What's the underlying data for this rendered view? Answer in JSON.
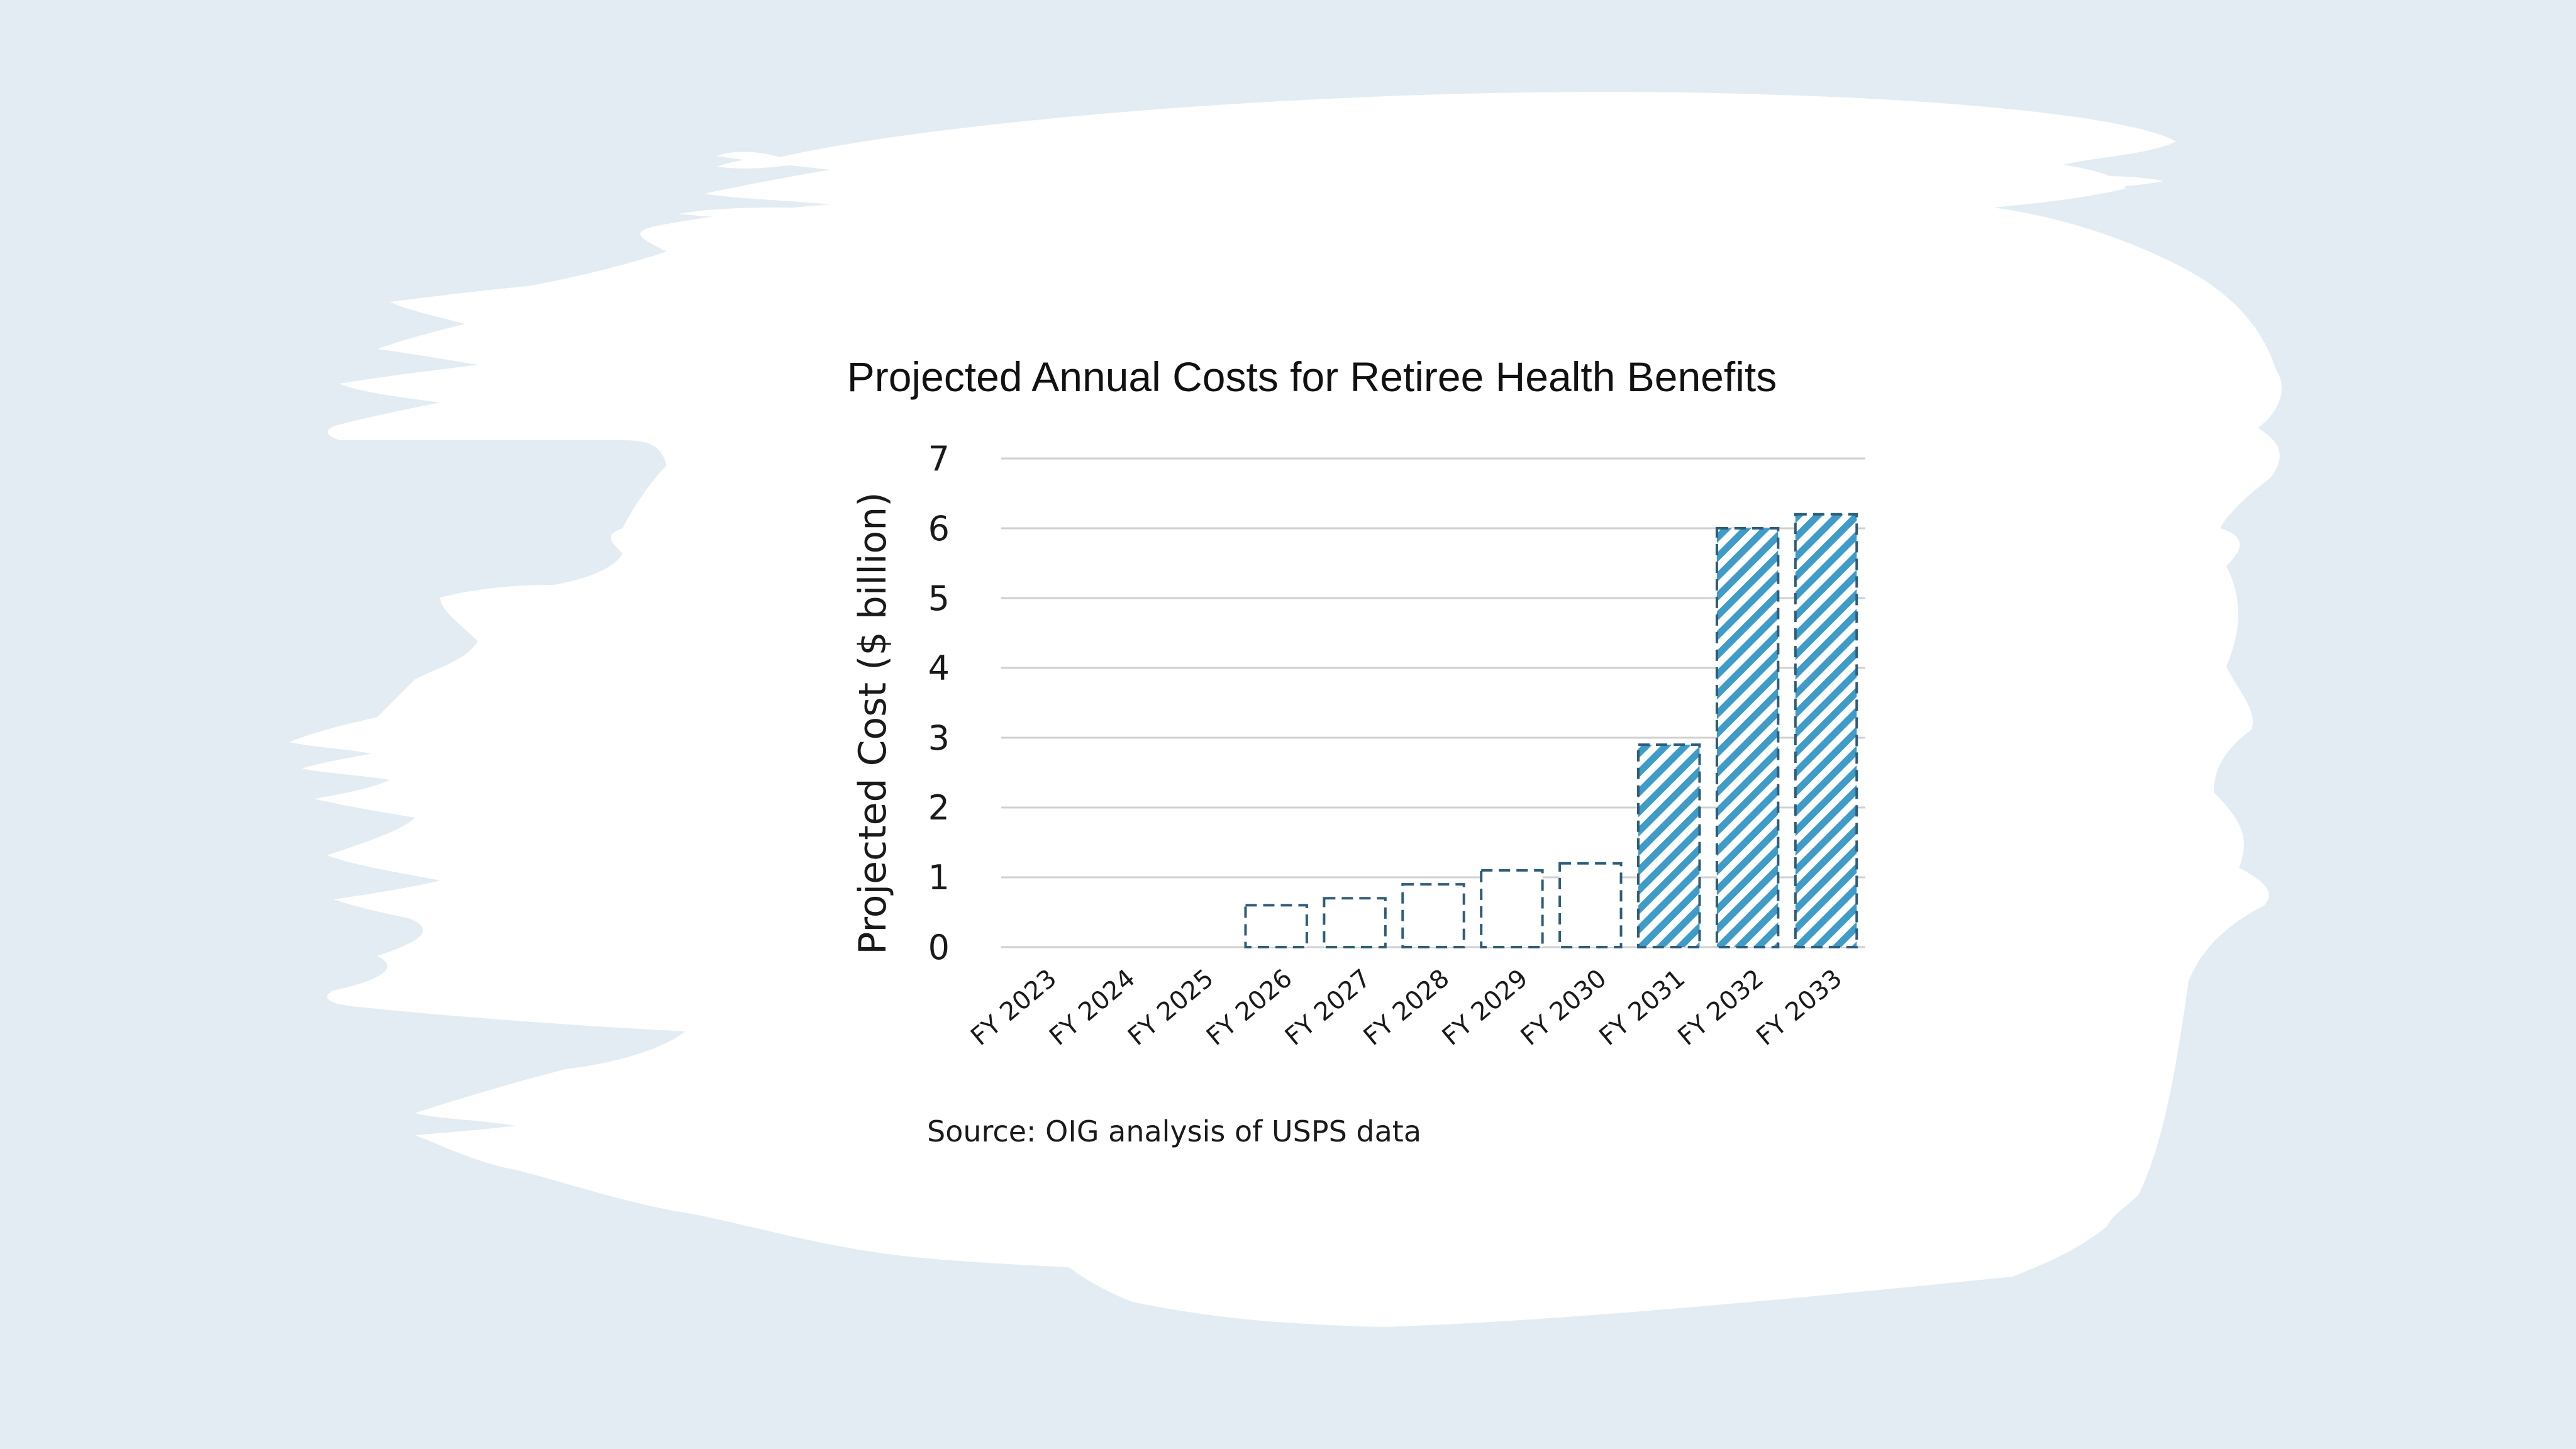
{
  "colors": {
    "background": "#e4ecf3",
    "panel": "#ffffff",
    "bar_stroke": "#2e5d7a",
    "hatch": "#3f9bc7",
    "gridline": "#d0d0d0"
  },
  "chart_data": {
    "type": "bar",
    "title": "Projected Annual Costs for Retiree Health Benefits",
    "xlabel": "",
    "ylabel": "Projected Cost ($ billion)",
    "ylim": [
      0,
      7
    ],
    "yticks": [
      "0",
      "1",
      "2",
      "3",
      "4",
      "5",
      "6",
      "7"
    ],
    "grid": true,
    "categories": [
      "FY 2023",
      "FY 2024",
      "FY 2025",
      "FY 2026",
      "FY 2027",
      "FY 2028",
      "FY 2029",
      "FY 2030",
      "FY 2031",
      "FY 2032",
      "FY 2033"
    ],
    "values": [
      0,
      0,
      0,
      0.6,
      0.7,
      0.9,
      1.1,
      1.2,
      2.9,
      6.0,
      6.2
    ],
    "bar_styles": [
      "dashed-outline",
      "dashed-outline",
      "dashed-outline",
      "dashed-outline",
      "dashed-outline",
      "dashed-outline",
      "dashed-outline",
      "dashed-outline",
      "hatched",
      "hatched",
      "hatched"
    ],
    "source": "Source: OIG analysis of USPS data"
  }
}
